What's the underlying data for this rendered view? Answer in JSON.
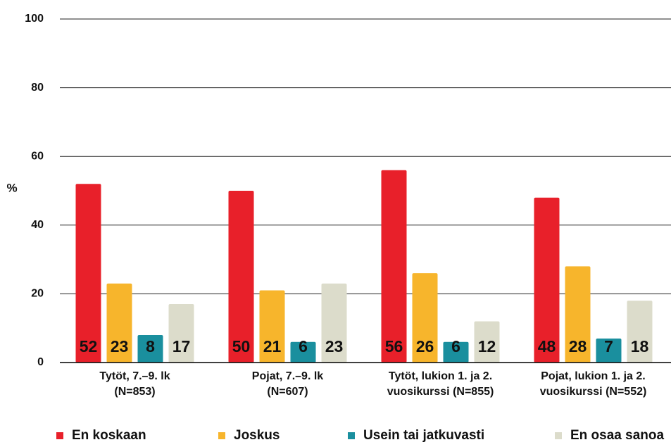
{
  "chart_data": {
    "type": "bar",
    "y_label": "%",
    "categories": [
      "Tytöt, 7.–9. lk\n(N=853)",
      "Pojat, 7.–9. lk\n(N=607)",
      "Tytöt, lukion 1. ja 2.\nvuosikurssi (N=855)",
      "Pojat, lukion 1. ja 2.\nvuosikurssi (N=552)"
    ],
    "series": [
      {
        "name": "En koskaan",
        "color": "#e8202a",
        "values": [
          52,
          50,
          56,
          48
        ]
      },
      {
        "name": "Joskus",
        "color": "#f7b52c",
        "values": [
          23,
          21,
          26,
          28
        ]
      },
      {
        "name": "Usein tai jatkuvasti",
        "color": "#1a8f9e",
        "values": [
          8,
          6,
          6,
          7
        ]
      },
      {
        "name": "En osaa sanoa",
        "color": "#dcdccb",
        "values": [
          17,
          23,
          12,
          18
        ]
      }
    ],
    "ylim": [
      0,
      100
    ],
    "yticks": [
      0,
      20,
      40,
      60,
      80,
      100
    ],
    "grid": true
  }
}
